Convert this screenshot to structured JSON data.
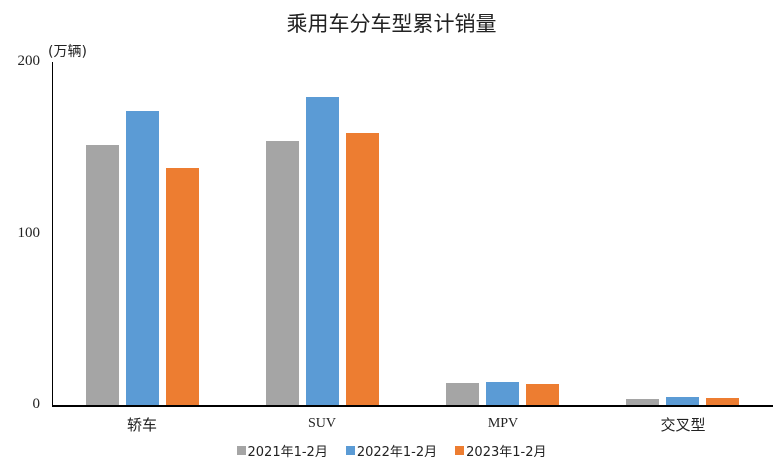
{
  "chart_data": {
    "type": "bar",
    "title": "乘用车分车型累计销量",
    "ylabel": "(万辆)",
    "xlabel": "",
    "ylim": [
      0,
      200
    ],
    "yticks": [
      0,
      100,
      200
    ],
    "grid": false,
    "legend_position": "bottom",
    "categories": [
      "轿车",
      "SUV",
      "MPV",
      "交叉型"
    ],
    "series": [
      {
        "name": "2021年1-2月",
        "color": "#a5a5a5",
        "values": [
          151.6,
          153.9,
          12.8,
          3.5
        ]
      },
      {
        "name": "2022年1-2月",
        "color": "#5b9bd5",
        "values": [
          171.4,
          179.6,
          13.4,
          4.7
        ]
      },
      {
        "name": "2023年1-2月",
        "color": "#ed7d31",
        "values": [
          138.2,
          158.6,
          12.2,
          4.1
        ]
      }
    ]
  },
  "labels": {
    "title": "乘用车分车型累计销量",
    "unit": "(万辆)",
    "yticks": [
      "0",
      "100",
      "200"
    ]
  }
}
